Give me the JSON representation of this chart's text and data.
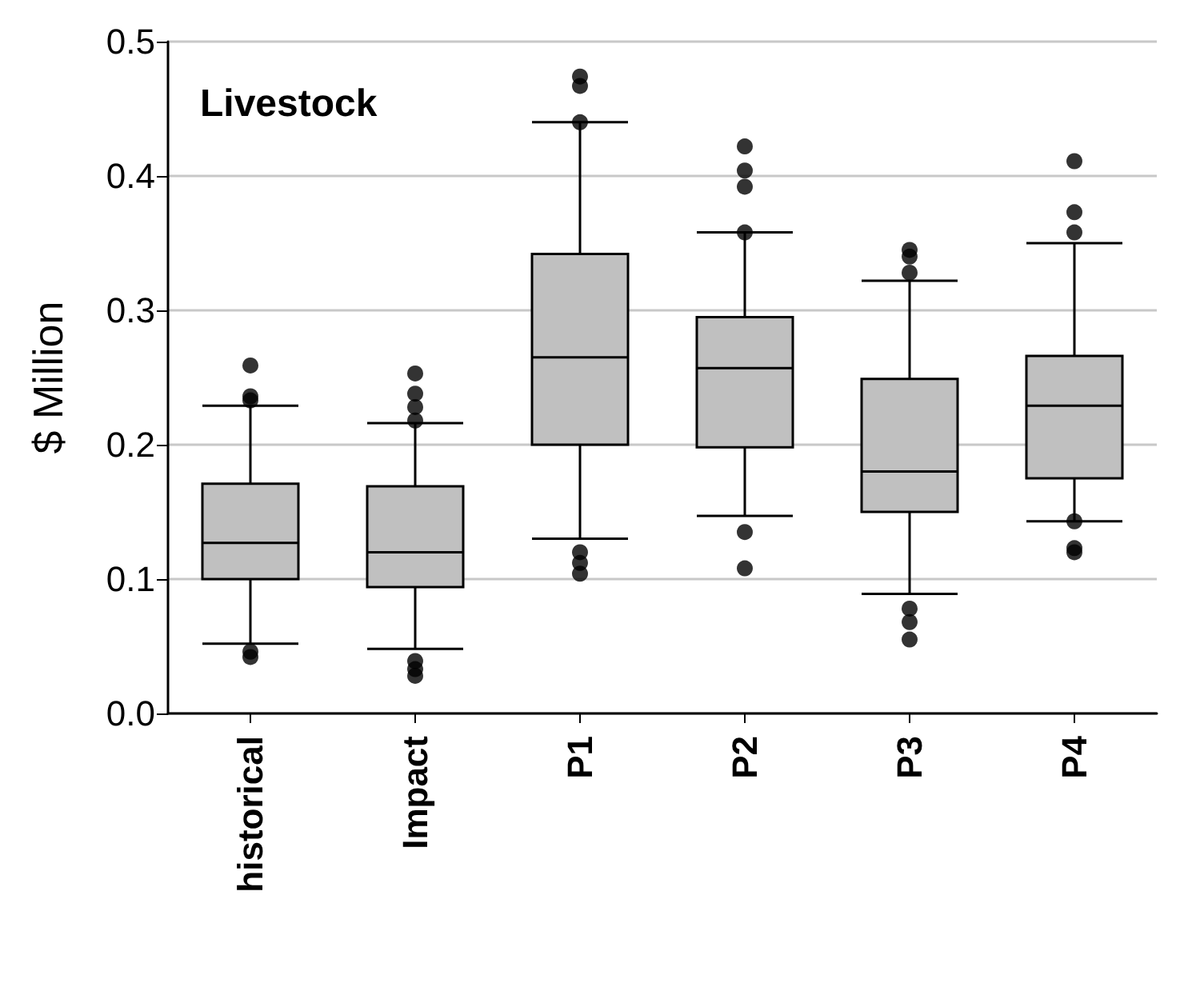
{
  "chart_data": {
    "type": "box",
    "title": "Livestock",
    "ylabel": "$ Million",
    "categories": [
      "historical",
      "Impact",
      "P1",
      "P2",
      "P3",
      "P4"
    ],
    "color": "#c0c0c0",
    "ylim": [
      0,
      0.5
    ],
    "yticks": [
      {
        "value": 0,
        "label": "0.0"
      },
      0.1,
      0.2,
      0.3,
      0.4,
      0.5
    ],
    "grid": "y",
    "boxes": [
      {
        "low": 0.052,
        "q1": 0.1,
        "median": 0.127,
        "q3": 0.171,
        "high": 0.229,
        "outliers": [
          0.259,
          0.236,
          0.233,
          0.046,
          0.042
        ]
      },
      {
        "low": 0.048,
        "q1": 0.094,
        "median": 0.12,
        "q3": 0.169,
        "high": 0.216,
        "outliers": [
          0.253,
          0.238,
          0.228,
          0.218,
          0.039,
          0.033,
          0.028
        ]
      },
      {
        "low": 0.13,
        "q1": 0.2,
        "median": 0.265,
        "q3": 0.342,
        "high": 0.44,
        "outliers": [
          0.474,
          0.467,
          0.44,
          0.12,
          0.112,
          0.104
        ]
      },
      {
        "low": 0.147,
        "q1": 0.198,
        "median": 0.257,
        "q3": 0.295,
        "high": 0.358,
        "outliers": [
          0.422,
          0.404,
          0.392,
          0.358,
          0.135,
          0.108
        ]
      },
      {
        "low": 0.089,
        "q1": 0.15,
        "median": 0.18,
        "q3": 0.249,
        "high": 0.322,
        "outliers": [
          0.345,
          0.34,
          0.328,
          0.078,
          0.068,
          0.055
        ]
      },
      {
        "low": 0.143,
        "q1": 0.175,
        "median": 0.229,
        "q3": 0.266,
        "high": 0.35,
        "outliers": [
          0.411,
          0.373,
          0.358,
          0.143,
          0.123,
          0.12
        ]
      }
    ]
  }
}
